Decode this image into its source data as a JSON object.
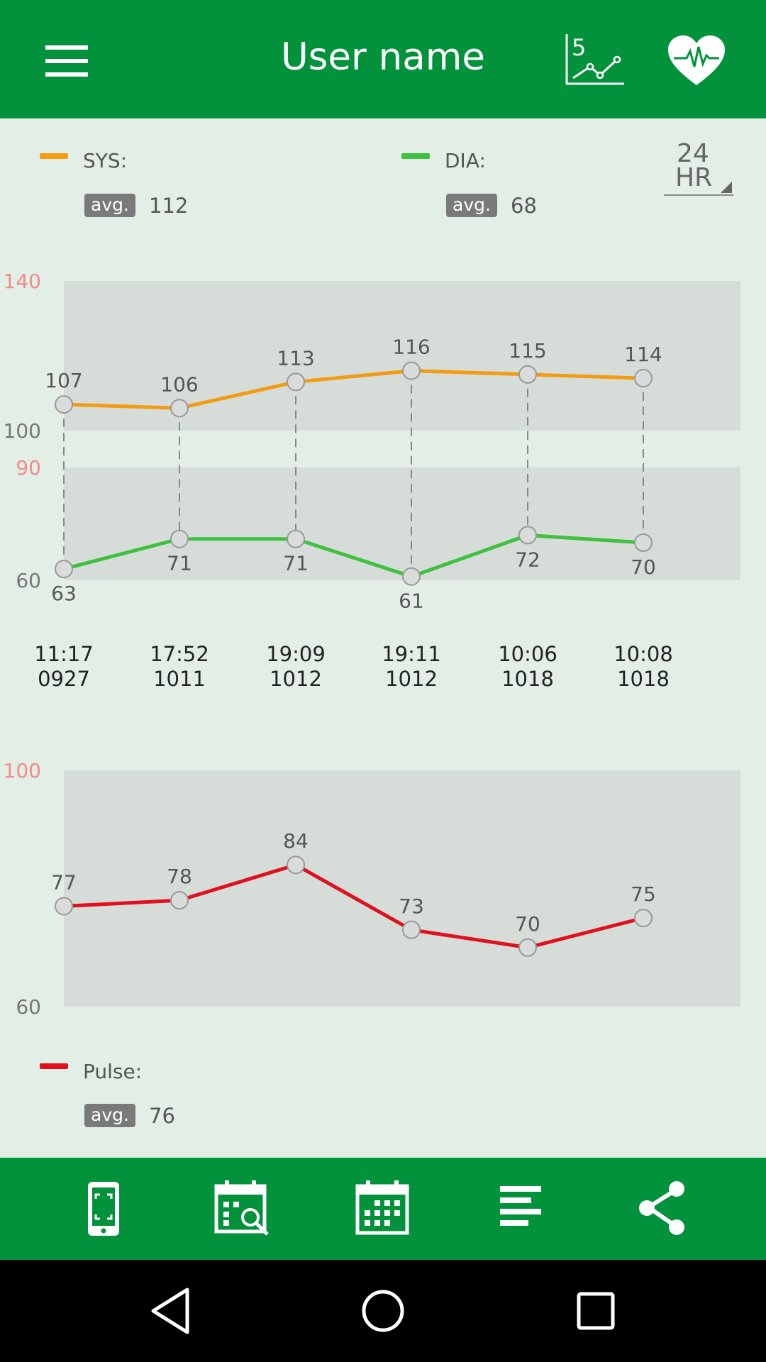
{
  "header": {
    "title": "User name",
    "icons": {
      "menu": "menu-icon",
      "trend": "trend-5-icon",
      "trend_digit": "5",
      "heart": "heart-pulse-icon"
    }
  },
  "legend": {
    "sys": {
      "label": "SYS:",
      "avg_label": "avg.",
      "avg_value": "112",
      "color": "#f39c12"
    },
    "dia": {
      "label": "DIA:",
      "avg_label": "avg.",
      "avg_value": "68",
      "color": "#3ec13e"
    },
    "period": {
      "line1": "24",
      "line2": "HR"
    }
  },
  "pulse_legend": {
    "label": "Pulse:",
    "avg_label": "avg.",
    "avg_value": "76",
    "color": "#e0101e"
  },
  "chart_data": [
    {
      "type": "line",
      "categories": [
        "11:17\n0927",
        "17:52\n1011",
        "19:09\n1012",
        "19:11\n1012",
        "10:06\n1018",
        "10:08\n1018"
      ],
      "tick_time": [
        "11:17",
        "17:52",
        "19:09",
        "19:11",
        "10:06",
        "10:08"
      ],
      "tick_date": [
        "0927",
        "1011",
        "1012",
        "1012",
        "1018",
        "1018"
      ],
      "y_ticks": [
        {
          "value": 140,
          "label": "140",
          "color": "#f28b8b"
        },
        {
          "value": 100,
          "label": "100",
          "color": "#777777"
        },
        {
          "value": 90,
          "label": "90",
          "color": "#f28b8b"
        },
        {
          "value": 60,
          "label": "60",
          "color": "#777777"
        }
      ],
      "bands": [
        [
          100,
          140
        ],
        [
          60,
          90
        ]
      ],
      "series": [
        {
          "name": "SYS",
          "values": [
            107,
            106,
            113,
            116,
            115,
            114
          ],
          "color": "#f39c12"
        },
        {
          "name": "DIA",
          "values": [
            63,
            71,
            71,
            61,
            72,
            70
          ],
          "color": "#3ec13e"
        }
      ],
      "grid": false
    },
    {
      "type": "line",
      "y_ticks": [
        {
          "value": 100,
          "label": "100",
          "color": "#f28b8b"
        },
        {
          "value": 60,
          "label": "60",
          "color": "#777777"
        }
      ],
      "bands": [
        [
          60,
          100
        ]
      ],
      "series": [
        {
          "name": "Pulse",
          "values": [
            77,
            78,
            84,
            73,
            70,
            75
          ],
          "color": "#e0101e"
        }
      ],
      "grid": false
    }
  ],
  "bottom_bar": {
    "icons": [
      "device-scan-icon",
      "calendar-search-icon",
      "calendar-icon",
      "list-icon",
      "share-icon"
    ]
  },
  "navbar": {
    "icons": [
      "back-icon",
      "home-icon",
      "recents-icon"
    ]
  }
}
